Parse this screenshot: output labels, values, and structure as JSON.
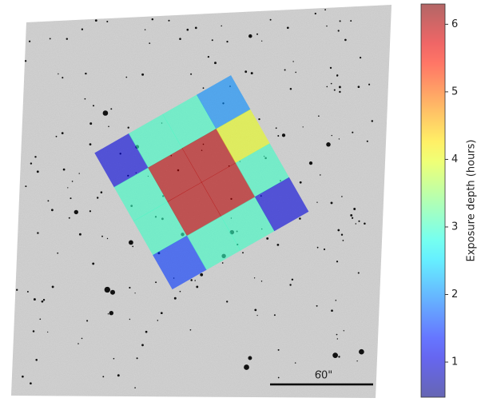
{
  "chart_data": {
    "type": "image-overlay",
    "overlay": {
      "z": [
        [
          1,
          3,
          3,
          2
        ],
        [
          3,
          6,
          6,
          4
        ],
        [
          3,
          6,
          6,
          3
        ],
        [
          1.5,
          3,
          3,
          1
        ]
      ],
      "colormap": "jet"
    },
    "colorbar": {
      "label": "Exposure depth (hours)",
      "lim": [
        0.48,
        6.3
      ],
      "ticks": [
        1,
        2,
        3,
        4,
        5,
        6
      ]
    },
    "scale_bar": {
      "label": "60\""
    }
  }
}
